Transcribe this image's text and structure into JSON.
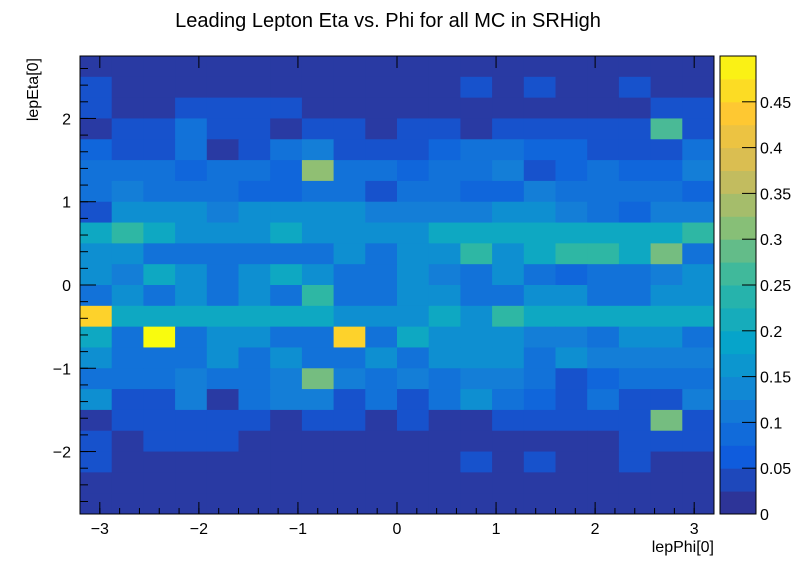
{
  "chart_data": {
    "type": "heatmap",
    "title": "Leading Lepton Eta vs. Phi for all MC in SRHigh",
    "xlabel": "lepPhi[0]",
    "ylabel": "lepEta[0]",
    "xlim": [
      -3.2,
      3.2
    ],
    "ylim": [
      -2.75,
      2.75
    ],
    "zlim": [
      0,
      0.5
    ],
    "x_bins": 20,
    "y_bins": 22,
    "x_ticks": [
      {
        "value": -3,
        "label": "−3"
      },
      {
        "value": -2,
        "label": "−2"
      },
      {
        "value": -1,
        "label": "−1"
      },
      {
        "value": 0,
        "label": "0"
      },
      {
        "value": 1,
        "label": "1"
      },
      {
        "value": 2,
        "label": "2"
      },
      {
        "value": 3,
        "label": "3"
      }
    ],
    "y_ticks": [
      {
        "value": -2,
        "label": "−2"
      },
      {
        "value": -1,
        "label": "−1"
      },
      {
        "value": 0,
        "label": "0"
      },
      {
        "value": 1,
        "label": "1"
      },
      {
        "value": 2,
        "label": "2"
      }
    ],
    "z_ticks": [
      {
        "value": 0,
        "label": "0"
      },
      {
        "value": 0.05,
        "label": "0.05"
      },
      {
        "value": 0.1,
        "label": "0.1"
      },
      {
        "value": 0.15,
        "label": "0.15"
      },
      {
        "value": 0.2,
        "label": "0.2"
      },
      {
        "value": 0.25,
        "label": "0.25"
      },
      {
        "value": 0.3,
        "label": "0.3"
      },
      {
        "value": 0.35,
        "label": "0.35"
      },
      {
        "value": 0.4,
        "label": "0.4"
      },
      {
        "value": 0.45,
        "label": "0.45"
      }
    ],
    "values": [
      [
        0.02,
        0.02,
        0.02,
        0.02,
        0.02,
        0.02,
        0.02,
        0.02,
        0.02,
        0.02,
        0.02,
        0.02,
        0.02,
        0.02,
        0.02,
        0.02,
        0.02,
        0.02,
        0.02,
        0.02
      ],
      [
        0.05,
        0.02,
        0.02,
        0.02,
        0.02,
        0.02,
        0.02,
        0.02,
        0.02,
        0.02,
        0.02,
        0.02,
        0.05,
        0.02,
        0.05,
        0.02,
        0.02,
        0.05,
        0.02,
        0.02
      ],
      [
        0.05,
        0.02,
        0.02,
        0.05,
        0.05,
        0.05,
        0.05,
        0.02,
        0.02,
        0.02,
        0.02,
        0.02,
        0.02,
        0.02,
        0.02,
        0.02,
        0.02,
        0.02,
        0.05,
        0.05
      ],
      [
        0.02,
        0.05,
        0.05,
        0.1,
        0.05,
        0.05,
        0.02,
        0.05,
        0.05,
        0.02,
        0.05,
        0.05,
        0.02,
        0.05,
        0.05,
        0.05,
        0.05,
        0.05,
        0.27,
        0.05
      ],
      [
        0.08,
        0.05,
        0.05,
        0.1,
        0.02,
        0.05,
        0.1,
        0.12,
        0.05,
        0.05,
        0.05,
        0.08,
        0.1,
        0.1,
        0.08,
        0.08,
        0.05,
        0.05,
        0.05,
        0.1
      ],
      [
        0.1,
        0.1,
        0.1,
        0.08,
        0.1,
        0.1,
        0.08,
        0.32,
        0.1,
        0.1,
        0.08,
        0.1,
        0.1,
        0.12,
        0.05,
        0.08,
        0.1,
        0.08,
        0.08,
        0.12
      ],
      [
        0.1,
        0.12,
        0.1,
        0.1,
        0.1,
        0.08,
        0.08,
        0.1,
        0.1,
        0.05,
        0.1,
        0.1,
        0.08,
        0.08,
        0.12,
        0.1,
        0.1,
        0.1,
        0.1,
        0.08
      ],
      [
        0.05,
        0.15,
        0.15,
        0.15,
        0.12,
        0.15,
        0.15,
        0.15,
        0.15,
        0.12,
        0.12,
        0.12,
        0.12,
        0.15,
        0.15,
        0.12,
        0.1,
        0.08,
        0.12,
        0.12
      ],
      [
        0.2,
        0.25,
        0.2,
        0.15,
        0.15,
        0.15,
        0.2,
        0.15,
        0.15,
        0.15,
        0.15,
        0.2,
        0.2,
        0.2,
        0.2,
        0.2,
        0.2,
        0.2,
        0.2,
        0.25
      ],
      [
        0.15,
        0.15,
        0.1,
        0.1,
        0.1,
        0.1,
        0.1,
        0.1,
        0.15,
        0.1,
        0.15,
        0.15,
        0.25,
        0.15,
        0.2,
        0.25,
        0.25,
        0.2,
        0.3,
        0.1
      ],
      [
        0.15,
        0.12,
        0.2,
        0.15,
        0.1,
        0.15,
        0.2,
        0.15,
        0.1,
        0.1,
        0.15,
        0.12,
        0.1,
        0.15,
        0.1,
        0.08,
        0.1,
        0.1,
        0.12,
        0.15
      ],
      [
        0.1,
        0.15,
        0.1,
        0.15,
        0.1,
        0.15,
        0.1,
        0.25,
        0.1,
        0.1,
        0.15,
        0.15,
        0.1,
        0.1,
        0.15,
        0.15,
        0.1,
        0.1,
        0.15,
        0.15
      ],
      [
        0.45,
        0.2,
        0.2,
        0.2,
        0.2,
        0.2,
        0.2,
        0.2,
        0.15,
        0.15,
        0.15,
        0.2,
        0.15,
        0.25,
        0.2,
        0.2,
        0.2,
        0.2,
        0.2,
        0.2
      ],
      [
        0.2,
        0.1,
        0.5,
        0.1,
        0.15,
        0.15,
        0.1,
        0.1,
        0.45,
        0.1,
        0.2,
        0.15,
        0.15,
        0.15,
        0.12,
        0.12,
        0.1,
        0.15,
        0.15,
        0.1
      ],
      [
        0.15,
        0.1,
        0.1,
        0.1,
        0.15,
        0.1,
        0.15,
        0.1,
        0.1,
        0.15,
        0.1,
        0.15,
        0.15,
        0.15,
        0.1,
        0.15,
        0.12,
        0.12,
        0.12,
        0.12
      ],
      [
        0.1,
        0.1,
        0.1,
        0.12,
        0.1,
        0.1,
        0.12,
        0.3,
        0.12,
        0.1,
        0.12,
        0.1,
        0.12,
        0.12,
        0.1,
        0.05,
        0.08,
        0.1,
        0.1,
        0.1
      ],
      [
        0.15,
        0.05,
        0.05,
        0.12,
        0.02,
        0.1,
        0.12,
        0.12,
        0.05,
        0.1,
        0.05,
        0.1,
        0.15,
        0.1,
        0.08,
        0.05,
        0.1,
        0.05,
        0.05,
        0.12
      ],
      [
        0.02,
        0.05,
        0.05,
        0.05,
        0.05,
        0.05,
        0.02,
        0.05,
        0.05,
        0.02,
        0.05,
        0.02,
        0.02,
        0.05,
        0.05,
        0.05,
        0.05,
        0.05,
        0.3,
        0.05
      ],
      [
        0.05,
        0.02,
        0.05,
        0.05,
        0.05,
        0.02,
        0.02,
        0.02,
        0.02,
        0.02,
        0.02,
        0.02,
        0.02,
        0.02,
        0.02,
        0.02,
        0.02,
        0.05,
        0.05,
        0.05
      ],
      [
        0.05,
        0.02,
        0.02,
        0.02,
        0.02,
        0.02,
        0.02,
        0.02,
        0.02,
        0.02,
        0.02,
        0.02,
        0.05,
        0.02,
        0.05,
        0.02,
        0.02,
        0.05,
        0.02,
        0.02
      ],
      [
        0.02,
        0.02,
        0.02,
        0.02,
        0.02,
        0.02,
        0.02,
        0.02,
        0.02,
        0.02,
        0.02,
        0.02,
        0.02,
        0.02,
        0.02,
        0.02,
        0.02,
        0.02,
        0.02,
        0.02
      ],
      [
        0.02,
        0.02,
        0.02,
        0.02,
        0.02,
        0.02,
        0.02,
        0.02,
        0.02,
        0.02,
        0.02,
        0.02,
        0.02,
        0.02,
        0.02,
        0.02,
        0.02,
        0.02,
        0.02,
        0.02
      ]
    ],
    "value_rows_order": "top-to-bottom",
    "colormap": [
      "#352a87",
      "#0f5cdd",
      "#1481d6",
      "#06a4ca",
      "#2eb7a4",
      "#87bf77",
      "#d1bb59",
      "#fec832",
      "#f9fb0e"
    ],
    "legend_placement": "right",
    "grid": false
  }
}
